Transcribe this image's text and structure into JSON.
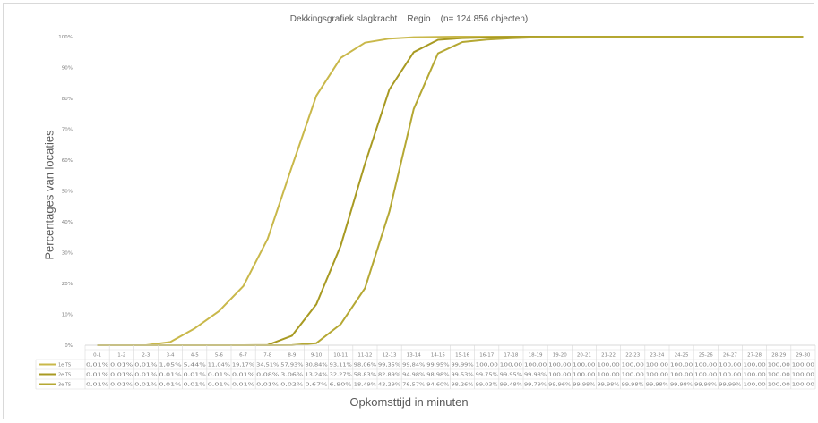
{
  "chart_data": {
    "type": "line",
    "title": "Dekkingsgrafiek slagkracht    Regio    (n= 124.856 objecten)",
    "xlabel": "Opkomsttijd in minuten",
    "ylabel": "Percentages van locaties",
    "ylim": [
      0,
      100
    ],
    "yticks": [
      "0%",
      "10%",
      "20%",
      "30%",
      "40%",
      "50%",
      "60%",
      "70%",
      "80%",
      "90%",
      "100%"
    ],
    "grid": false,
    "legend": "table-below",
    "categories": [
      "0-1",
      "1-2",
      "2-3",
      "3-4",
      "4-5",
      "5-6",
      "6-7",
      "7-8",
      "8-9",
      "9-10",
      "10-11",
      "11-12",
      "12-13",
      "13-14",
      "14-15",
      "15-16",
      "16-17",
      "17-18",
      "18-19",
      "19-20",
      "20-21",
      "21-22",
      "22-23",
      "23-24",
      "24-25",
      "25-26",
      "26-27",
      "27-28",
      "28-29",
      "29-30"
    ],
    "series": [
      {
        "name": "1e TS",
        "color": "#c9b84a",
        "values": [
          0.01,
          0.01,
          0.01,
          1.05,
          5.44,
          11.04,
          19.17,
          34.51,
          57.93,
          80.84,
          93.11,
          98.06,
          99.35,
          99.84,
          99.95,
          99.99,
          100,
          100,
          100,
          100,
          100,
          100,
          100,
          100,
          100,
          100,
          100,
          100,
          100,
          100
        ],
        "labels": [
          "0,01%",
          "0,01%",
          "0,01%",
          "1,05%",
          "5,44%",
          "11,04%",
          "19,17%",
          "34,51%",
          "57,93%",
          "80,84%",
          "93,11%",
          "98,06%",
          "99,35%",
          "99,84%",
          "99,95%",
          "99,99%",
          "100,00",
          "100,00",
          "100,00",
          "100,00",
          "100,00",
          "100,00",
          "100,00",
          "100,00",
          "100,00",
          "100,00",
          "100,00",
          "100,00",
          "100,00",
          "100,00"
        ]
      },
      {
        "name": "2e TS",
        "color": "#a89a22",
        "values": [
          0.01,
          0.01,
          0.01,
          0.01,
          0.01,
          0.01,
          0.01,
          0.08,
          3.06,
          13.24,
          32.27,
          58.83,
          82.89,
          94.98,
          98.98,
          99.53,
          99.75,
          99.95,
          99.98,
          100,
          100,
          100,
          100,
          100,
          100,
          100,
          100,
          100,
          100,
          100
        ],
        "labels": [
          "0,01%",
          "0,01%",
          "0,01%",
          "0,01%",
          "0,01%",
          "0,01%",
          "0,01%",
          "0,08%",
          "3,06%",
          "13,24%",
          "32,27%",
          "58,83%",
          "82,89%",
          "94,98%",
          "98,98%",
          "99,53%",
          "99,75%",
          "99,95%",
          "99,98%",
          "100,00",
          "100,00",
          "100,00",
          "100,00",
          "100,00",
          "100,00",
          "100,00",
          "100,00",
          "100,00",
          "100,00",
          "100,00"
        ]
      },
      {
        "name": "3e TS",
        "color": "#b5a833",
        "values": [
          0.01,
          0.01,
          0.01,
          0.01,
          0.01,
          0.01,
          0.01,
          0.01,
          0.02,
          0.67,
          6.8,
          18.49,
          43.29,
          76.57,
          94.6,
          98.26,
          99.03,
          99.48,
          99.79,
          99.96,
          99.98,
          99.98,
          99.98,
          99.98,
          99.98,
          99.98,
          99.99,
          100,
          100,
          100
        ],
        "labels": [
          "0,01%",
          "0,01%",
          "0,01%",
          "0,01%",
          "0,01%",
          "0,01%",
          "0,01%",
          "0,01%",
          "0,02%",
          "0,67%",
          "6,80%",
          "18,49%",
          "43,29%",
          "76,57%",
          "94,60%",
          "98,26%",
          "99,03%",
          "99,48%",
          "99,79%",
          "99,96%",
          "99,98%",
          "99,98%",
          "99,98%",
          "99,98%",
          "99,98%",
          "99,98%",
          "99,99%",
          "100,00",
          "100,00",
          "100,00"
        ]
      }
    ]
  }
}
